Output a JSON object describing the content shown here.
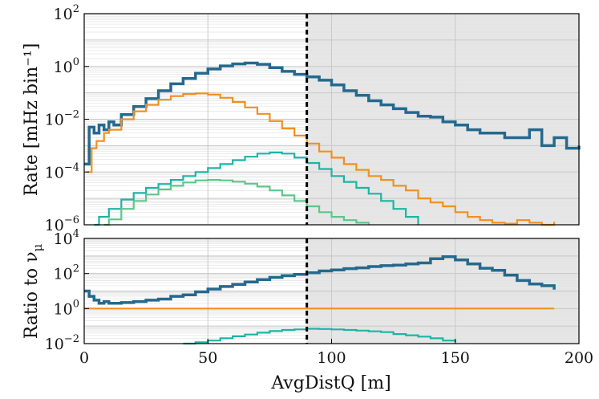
{
  "chart_data": [
    {
      "type": "line",
      "panel": "top",
      "ylabel": "Rate [mHz bin⁻¹]",
      "yscale": "log",
      "ylim": [
        1e-06,
        100
      ],
      "xlim": [
        0,
        200
      ],
      "xticks": [
        0,
        50,
        100,
        150,
        200
      ],
      "yticks": [
        {
          "value": 1e-06,
          "base": "10",
          "exp": "−6"
        },
        {
          "value": 0.0001,
          "base": "10",
          "exp": "−4"
        },
        {
          "value": 0.01,
          "base": "10",
          "exp": "−2"
        },
        {
          "value": 1,
          "base": "10",
          "exp": "0"
        },
        {
          "value": 100,
          "base": "10",
          "exp": "2"
        }
      ],
      "cut_line_x": 90,
      "shaded_region": [
        90,
        200
      ],
      "series": [
        {
          "name": "blue",
          "color": "#25698d",
          "x": [
            0,
            2,
            4,
            6,
            8,
            10,
            12,
            15,
            20,
            25,
            30,
            35,
            40,
            45,
            50,
            55,
            60,
            65,
            70,
            75,
            80,
            85,
            90,
            95,
            100,
            105,
            110,
            115,
            120,
            125,
            130,
            135,
            140,
            145,
            150,
            155,
            160,
            165,
            170,
            175,
            180,
            185,
            190,
            195,
            200
          ],
          "y": [
            0.0002,
            0.005,
            0.003,
            0.006,
            0.004,
            0.008,
            0.006,
            0.015,
            0.03,
            0.06,
            0.12,
            0.22,
            0.35,
            0.55,
            0.8,
            1.05,
            1.25,
            1.35,
            1.2,
            0.9,
            0.65,
            0.5,
            0.4,
            0.3,
            0.2,
            0.12,
            0.08,
            0.05,
            0.035,
            0.025,
            0.018,
            0.013,
            0.012,
            0.008,
            0.006,
            0.004,
            0.003,
            0.003,
            0.002,
            0.002,
            0.004,
            0.001,
            0.002,
            0.0008,
            0.001
          ]
        },
        {
          "name": "orange",
          "color": "#f0901e",
          "x": [
            1,
            3,
            5,
            8,
            10,
            15,
            20,
            25,
            30,
            35,
            40,
            45,
            50,
            55,
            60,
            65,
            70,
            75,
            80,
            85,
            90,
            95,
            100,
            105,
            110,
            115,
            120,
            125,
            130,
            135,
            140,
            145,
            150,
            155,
            160,
            165,
            170,
            175,
            180,
            185,
            190
          ],
          "y": [
            0.0001,
            0.0008,
            0.0015,
            0.003,
            0.004,
            0.01,
            0.02,
            0.035,
            0.055,
            0.075,
            0.09,
            0.095,
            0.085,
            0.065,
            0.045,
            0.028,
            0.016,
            0.0085,
            0.0045,
            0.0024,
            0.0012,
            0.0006,
            0.00035,
            0.0002,
            0.00012,
            7e-05,
            5e-05,
            3e-05,
            2e-05,
            1e-05,
            7e-06,
            5e-06,
            3e-06,
            2e-06,
            1.5e-06,
            1.2e-06,
            1.1e-06,
            1.5e-06,
            1.2e-06,
            1e-06,
            1.3e-06
          ]
        },
        {
          "name": "teal",
          "color": "#1eb4a4",
          "x": [
            4,
            6,
            10,
            15,
            20,
            25,
            30,
            35,
            40,
            45,
            50,
            55,
            60,
            65,
            70,
            75,
            80,
            85,
            90,
            95,
            100,
            105,
            110,
            115,
            120,
            125,
            130,
            135
          ],
          "y": [
            1e-06,
            2e-06,
            4e-06,
            9e-06,
            1.6e-05,
            2.5e-05,
            3.5e-05,
            5e-05,
            7e-05,
            0.0001,
            0.00014,
            0.0002,
            0.00028,
            0.00038,
            0.0005,
            0.00055,
            0.0005,
            0.00035,
            0.00022,
            0.00013,
            7e-05,
            4.2e-05,
            2.5e-05,
            1.5e-05,
            8e-06,
            4e-06,
            2e-06,
            1e-06
          ]
        },
        {
          "name": "green",
          "color": "#5cc68a",
          "x": [
            8,
            10,
            15,
            20,
            25,
            30,
            35,
            40,
            45,
            50,
            55,
            60,
            65,
            70,
            75,
            80,
            85,
            90,
            95,
            100,
            105,
            110,
            115
          ],
          "y": [
            1e-06,
            1.6e-06,
            4e-06,
            8e-06,
            1.4e-05,
            2.2e-05,
            3e-05,
            4e-05,
            4.8e-05,
            5e-05,
            4.8e-05,
            4.3e-05,
            3.6e-05,
            2.8e-05,
            2e-05,
            1.3e-05,
            8e-06,
            5e-06,
            3e-06,
            2e-06,
            1.5e-06,
            1.2e-06,
            1e-06
          ]
        }
      ]
    },
    {
      "type": "line",
      "panel": "bottom",
      "ylabel": "Ratio to ν",
      "ylabel_sub": "μ",
      "xlabel": "AvgDistQ [m]",
      "yscale": "log",
      "ylim": [
        0.01,
        10000
      ],
      "xlim": [
        0,
        200
      ],
      "xticks": [
        0,
        50,
        100,
        150,
        200
      ],
      "yticks": [
        {
          "value": 0.01,
          "base": "10",
          "exp": "−2"
        },
        {
          "value": 1,
          "base": "10",
          "exp": "0"
        },
        {
          "value": 100,
          "base": "10",
          "exp": "2"
        },
        {
          "value": 10000,
          "base": "10",
          "exp": "4"
        }
      ],
      "cut_line_x": 90,
      "shaded_region": [
        90,
        200
      ],
      "series": [
        {
          "name": "blue",
          "color": "#25698d",
          "x": [
            0,
            2,
            4,
            6,
            8,
            10,
            15,
            20,
            25,
            30,
            35,
            40,
            45,
            50,
            55,
            60,
            65,
            70,
            75,
            80,
            85,
            90,
            95,
            100,
            105,
            110,
            115,
            120,
            125,
            130,
            135,
            140,
            145,
            150,
            155,
            160,
            165,
            170,
            175,
            180,
            185,
            190
          ],
          "y": [
            10,
            5,
            3,
            2,
            2.5,
            2,
            2.2,
            2.5,
            3,
            3.5,
            5,
            6,
            9,
            13,
            18,
            24,
            33,
            45,
            60,
            75,
            90,
            110,
            140,
            160,
            190,
            210,
            250,
            280,
            300,
            350,
            400,
            700,
            900,
            600,
            350,
            200,
            150,
            80,
            40,
            25,
            20,
            12
          ]
        },
        {
          "name": "orange",
          "color": "#f0901e",
          "x": [
            0,
            50,
            90,
            100,
            110,
            120,
            130,
            140,
            150,
            160,
            170,
            180,
            190
          ],
          "y": [
            1,
            1,
            1,
            1,
            1,
            1,
            1,
            1,
            1,
            1,
            1,
            1,
            1
          ]
        },
        {
          "name": "teal",
          "color": "#1eb4a4",
          "x": [
            40,
            45,
            50,
            55,
            60,
            65,
            70,
            75,
            80,
            85,
            90,
            95,
            100,
            105,
            110,
            115,
            120,
            125,
            130,
            135,
            140,
            145,
            150
          ],
          "y": [
            0.01,
            0.012,
            0.015,
            0.02,
            0.026,
            0.033,
            0.042,
            0.052,
            0.06,
            0.065,
            0.07,
            0.068,
            0.065,
            0.06,
            0.055,
            0.05,
            0.045,
            0.035,
            0.03,
            0.025,
            0.02,
            0.015,
            0.012
          ]
        }
      ]
    }
  ]
}
